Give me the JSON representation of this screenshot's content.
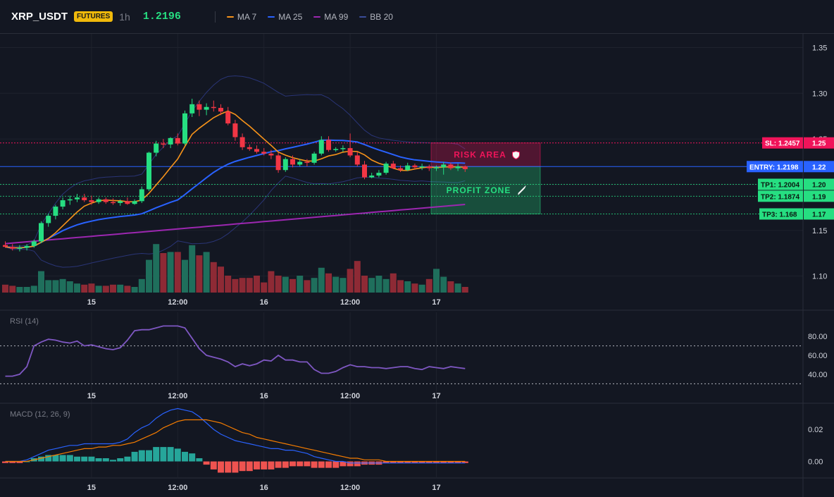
{
  "header": {
    "symbol": "XRP_USDT",
    "badge": "FUTURES",
    "timeframe": "1h",
    "price": "1.2196",
    "legend": [
      {
        "label": "MA 7",
        "color": "#f7931a"
      },
      {
        "label": "MA 25",
        "color": "#2962ff"
      },
      {
        "label": "MA 99",
        "color": "#9c27b0"
      },
      {
        "label": "BB 20",
        "color": "#3a4d99"
      }
    ]
  },
  "colors": {
    "up": "#26de81",
    "down": "#f23645",
    "vol_up": "#1f6f5c",
    "vol_down": "#8e2a35",
    "ma7": "#f7931a",
    "ma25": "#2962ff",
    "ma99": "#9c27b0",
    "bb": "#2a3577",
    "rsi": "#7e57c2",
    "macd": "#2962ff",
    "signal": "#f57c00",
    "hist_up": "#26a69a",
    "hist_down": "#ef5350"
  },
  "price_axis": {
    "ticks": [
      1.35,
      1.3,
      1.25,
      1.2,
      1.15,
      1.1
    ],
    "tick_labels": [
      "1.35",
      "1.30",
      "1.25",
      "1.20",
      "1.15",
      "1.10"
    ],
    "range": [
      1.082,
      1.365
    ]
  },
  "time_axis": {
    "labels": [
      "15",
      "12:00",
      "16",
      "12:00",
      "17"
    ],
    "positions": [
      12,
      24,
      36,
      48,
      60
    ]
  },
  "levels": {
    "sl": {
      "label": "SL: 1.2457",
      "value": 1.2457,
      "axis_label": "1.25",
      "color": "#f0145a"
    },
    "entry": {
      "label": "ENTRY: 1.2198",
      "value": 1.2198,
      "axis_label": "1.22",
      "color": "#2962ff"
    },
    "tp1": {
      "label": "TP1: 1.2004",
      "value": 1.2004,
      "axis_label": "1.20",
      "color": "#26de81"
    },
    "tp2": {
      "label": "TP2: 1.1874",
      "value": 1.1874,
      "axis_label": "1.19",
      "color": "#26de81"
    },
    "tp3": {
      "label": "TP3: 1.168",
      "value": 1.168,
      "axis_label": "1.17",
      "color": "#26de81"
    }
  },
  "zones": {
    "risk_label": "RISK AREA",
    "profit_label": "PROFIT ZONE"
  },
  "candles": [
    [
      1.134,
      1.138,
      1.131,
      1.132
    ],
    [
      1.132,
      1.135,
      1.128,
      1.13
    ],
    [
      1.13,
      1.134,
      1.127,
      1.131
    ],
    [
      1.131,
      1.135,
      1.128,
      1.133
    ],
    [
      1.133,
      1.14,
      1.131,
      1.138
    ],
    [
      1.138,
      1.16,
      1.136,
      1.158
    ],
    [
      1.158,
      1.168,
      1.154,
      1.166
    ],
    [
      1.166,
      1.178,
      1.162,
      1.176
    ],
    [
      1.176,
      1.186,
      1.173,
      1.183
    ],
    [
      1.183,
      1.188,
      1.178,
      1.184
    ],
    [
      1.184,
      1.19,
      1.181,
      1.186
    ],
    [
      1.186,
      1.19,
      1.181,
      1.183
    ],
    [
      1.183,
      1.188,
      1.178,
      1.181
    ],
    [
      1.181,
      1.186,
      1.179,
      1.184
    ],
    [
      1.184,
      1.186,
      1.179,
      1.181
    ],
    [
      1.181,
      1.185,
      1.178,
      1.18
    ],
    [
      1.18,
      1.184,
      1.177,
      1.182
    ],
    [
      1.182,
      1.186,
      1.178,
      1.179
    ],
    [
      1.179,
      1.184,
      1.178,
      1.182
    ],
    [
      1.182,
      1.198,
      1.18,
      1.195
    ],
    [
      1.195,
      1.236,
      1.193,
      1.235
    ],
    [
      1.235,
      1.248,
      1.231,
      1.245
    ],
    [
      1.245,
      1.25,
      1.24,
      1.244
    ],
    [
      1.244,
      1.252,
      1.24,
      1.251
    ],
    [
      1.251,
      1.256,
      1.243,
      1.245
    ],
    [
      1.245,
      1.281,
      1.243,
      1.278
    ],
    [
      1.278,
      1.294,
      1.274,
      1.288
    ],
    [
      1.288,
      1.292,
      1.275,
      1.282
    ],
    [
      1.282,
      1.289,
      1.276,
      1.285
    ],
    [
      1.285,
      1.292,
      1.28,
      1.284
    ],
    [
      1.284,
      1.288,
      1.276,
      1.28
    ],
    [
      1.28,
      1.285,
      1.265,
      1.267
    ],
    [
      1.267,
      1.271,
      1.248,
      1.252
    ],
    [
      1.252,
      1.256,
      1.238,
      1.241
    ],
    [
      1.241,
      1.244,
      1.237,
      1.239
    ],
    [
      1.239,
      1.243,
      1.234,
      1.236
    ],
    [
      1.236,
      1.24,
      1.232,
      1.234
    ],
    [
      1.234,
      1.238,
      1.228,
      1.232
    ],
    [
      1.232,
      1.235,
      1.213,
      1.216
    ],
    [
      1.216,
      1.23,
      1.214,
      1.228
    ],
    [
      1.228,
      1.232,
      1.219,
      1.222
    ],
    [
      1.222,
      1.228,
      1.22,
      1.225
    ],
    [
      1.225,
      1.228,
      1.22,
      1.224
    ],
    [
      1.224,
      1.236,
      1.222,
      1.234
    ],
    [
      1.234,
      1.253,
      1.232,
      1.249
    ],
    [
      1.249,
      1.253,
      1.236,
      1.238
    ],
    [
      1.238,
      1.241,
      1.236,
      1.239
    ],
    [
      1.239,
      1.243,
      1.236,
      1.24
    ],
    [
      1.24,
      1.256,
      1.23,
      1.232
    ],
    [
      1.232,
      1.236,
      1.22,
      1.222
    ],
    [
      1.222,
      1.226,
      1.206,
      1.208
    ],
    [
      1.208,
      1.213,
      1.207,
      1.21
    ],
    [
      1.21,
      1.216,
      1.208,
      1.213
    ],
    [
      1.213,
      1.225,
      1.211,
      1.223
    ],
    [
      1.223,
      1.226,
      1.217,
      1.218
    ],
    [
      1.218,
      1.221,
      1.214,
      1.216
    ],
    [
      1.216,
      1.224,
      1.215,
      1.221
    ],
    [
      1.221,
      1.223,
      1.217,
      1.219
    ],
    [
      1.219,
      1.223,
      1.216,
      1.22
    ],
    [
      1.22,
      1.222,
      1.215,
      1.218
    ],
    [
      1.218,
      1.221,
      1.215,
      1.219
    ],
    [
      1.219,
      1.225,
      1.211,
      1.222
    ],
    [
      1.222,
      1.224,
      1.216,
      1.218
    ],
    [
      1.218,
      1.223,
      1.215,
      1.22
    ],
    [
      1.22,
      1.221,
      1.214,
      1.217
    ]
  ],
  "volume": [
    14,
    12,
    10,
    10,
    12,
    38,
    22,
    22,
    24,
    20,
    16,
    14,
    16,
    12,
    12,
    14,
    14,
    12,
    10,
    24,
    58,
    86,
    70,
    72,
    72,
    58,
    84,
    66,
    72,
    54,
    46,
    30,
    24,
    26,
    26,
    30,
    18,
    38,
    30,
    28,
    24,
    30,
    22,
    26,
    44,
    34,
    28,
    26,
    42,
    56,
    30,
    26,
    30,
    24,
    34,
    22,
    20,
    16,
    14,
    24,
    42,
    28,
    20,
    16,
    10
  ],
  "rsi": {
    "title": "RSI (14)",
    "ticks": [
      80.0,
      60.0,
      40.0
    ],
    "tick_labels": [
      "80.00",
      "60.00",
      "40.00"
    ],
    "range": [
      28,
      95
    ],
    "bands": [
      70,
      30
    ],
    "values": [
      38,
      38,
      40,
      48,
      70,
      74,
      77,
      76,
      74,
      73,
      75,
      70,
      71,
      69,
      67,
      66,
      68,
      76,
      86,
      87,
      87,
      89,
      91,
      91,
      91,
      89,
      78,
      67,
      60,
      58,
      56,
      53,
      48,
      51,
      49,
      51,
      55,
      54,
      60,
      55,
      55,
      53,
      53,
      45,
      41,
      41,
      43,
      47,
      50,
      48,
      48,
      47,
      47,
      46,
      47,
      48,
      48,
      46,
      45,
      48,
      47,
      46,
      48,
      47,
      46
    ]
  },
  "macd": {
    "title": "MACD (12, 26, 9)",
    "ticks": [
      0.02,
      0.0
    ],
    "tick_labels": [
      "0.02",
      "0.00"
    ],
    "range": [
      -0.009,
      0.035
    ],
    "macd_line": [
      0.0,
      0.0,
      0.0,
      0.001,
      0.003,
      0.005,
      0.007,
      0.008,
      0.009,
      0.01,
      0.01,
      0.011,
      0.011,
      0.011,
      0.011,
      0.011,
      0.012,
      0.014,
      0.018,
      0.021,
      0.023,
      0.027,
      0.03,
      0.032,
      0.033,
      0.032,
      0.031,
      0.028,
      0.024,
      0.02,
      0.017,
      0.015,
      0.013,
      0.012,
      0.011,
      0.01,
      0.009,
      0.008,
      0.008,
      0.007,
      0.007,
      0.006,
      0.005,
      0.003,
      0.002,
      0.001,
      0.0,
      0.0,
      -0.001,
      -0.001,
      -0.001,
      -0.001,
      -0.001,
      -0.001,
      -0.001,
      -0.001,
      -0.001,
      -0.001,
      -0.001,
      -0.001,
      -0.001,
      -0.001,
      -0.001,
      -0.001,
      -0.001
    ],
    "signal_line": [
      0.0,
      0.0,
      0.0,
      0.0,
      0.001,
      0.002,
      0.003,
      0.004,
      0.005,
      0.006,
      0.007,
      0.008,
      0.008,
      0.009,
      0.009,
      0.01,
      0.01,
      0.011,
      0.012,
      0.014,
      0.016,
      0.018,
      0.021,
      0.023,
      0.025,
      0.026,
      0.026,
      0.026,
      0.026,
      0.025,
      0.024,
      0.022,
      0.02,
      0.018,
      0.017,
      0.015,
      0.014,
      0.013,
      0.012,
      0.011,
      0.01,
      0.009,
      0.008,
      0.007,
      0.006,
      0.005,
      0.004,
      0.003,
      0.002,
      0.002,
      0.001,
      0.001,
      0.001,
      0.0,
      0.0,
      0.0,
      0.0,
      0.0,
      0.0,
      0.0,
      0.0,
      0.0,
      0.0,
      0.0,
      0.0
    ],
    "hist": [
      -0.001,
      -0.001,
      -0.001,
      0.0,
      0.002,
      0.003,
      0.004,
      0.004,
      0.004,
      0.004,
      0.003,
      0.003,
      0.003,
      0.002,
      0.002,
      0.001,
      0.002,
      0.003,
      0.006,
      0.007,
      0.007,
      0.009,
      0.009,
      0.009,
      0.008,
      0.006,
      0.005,
      0.002,
      -0.002,
      -0.005,
      -0.007,
      -0.007,
      -0.007,
      -0.006,
      -0.006,
      -0.005,
      -0.005,
      -0.005,
      -0.004,
      -0.004,
      -0.003,
      -0.003,
      -0.003,
      -0.004,
      -0.004,
      -0.004,
      -0.004,
      -0.003,
      -0.003,
      -0.003,
      -0.002,
      -0.002,
      -0.002,
      -0.001,
      -0.001,
      -0.001,
      -0.001,
      -0.001,
      -0.001,
      -0.001,
      -0.001,
      -0.001,
      -0.001,
      -0.001,
      -0.001
    ]
  }
}
